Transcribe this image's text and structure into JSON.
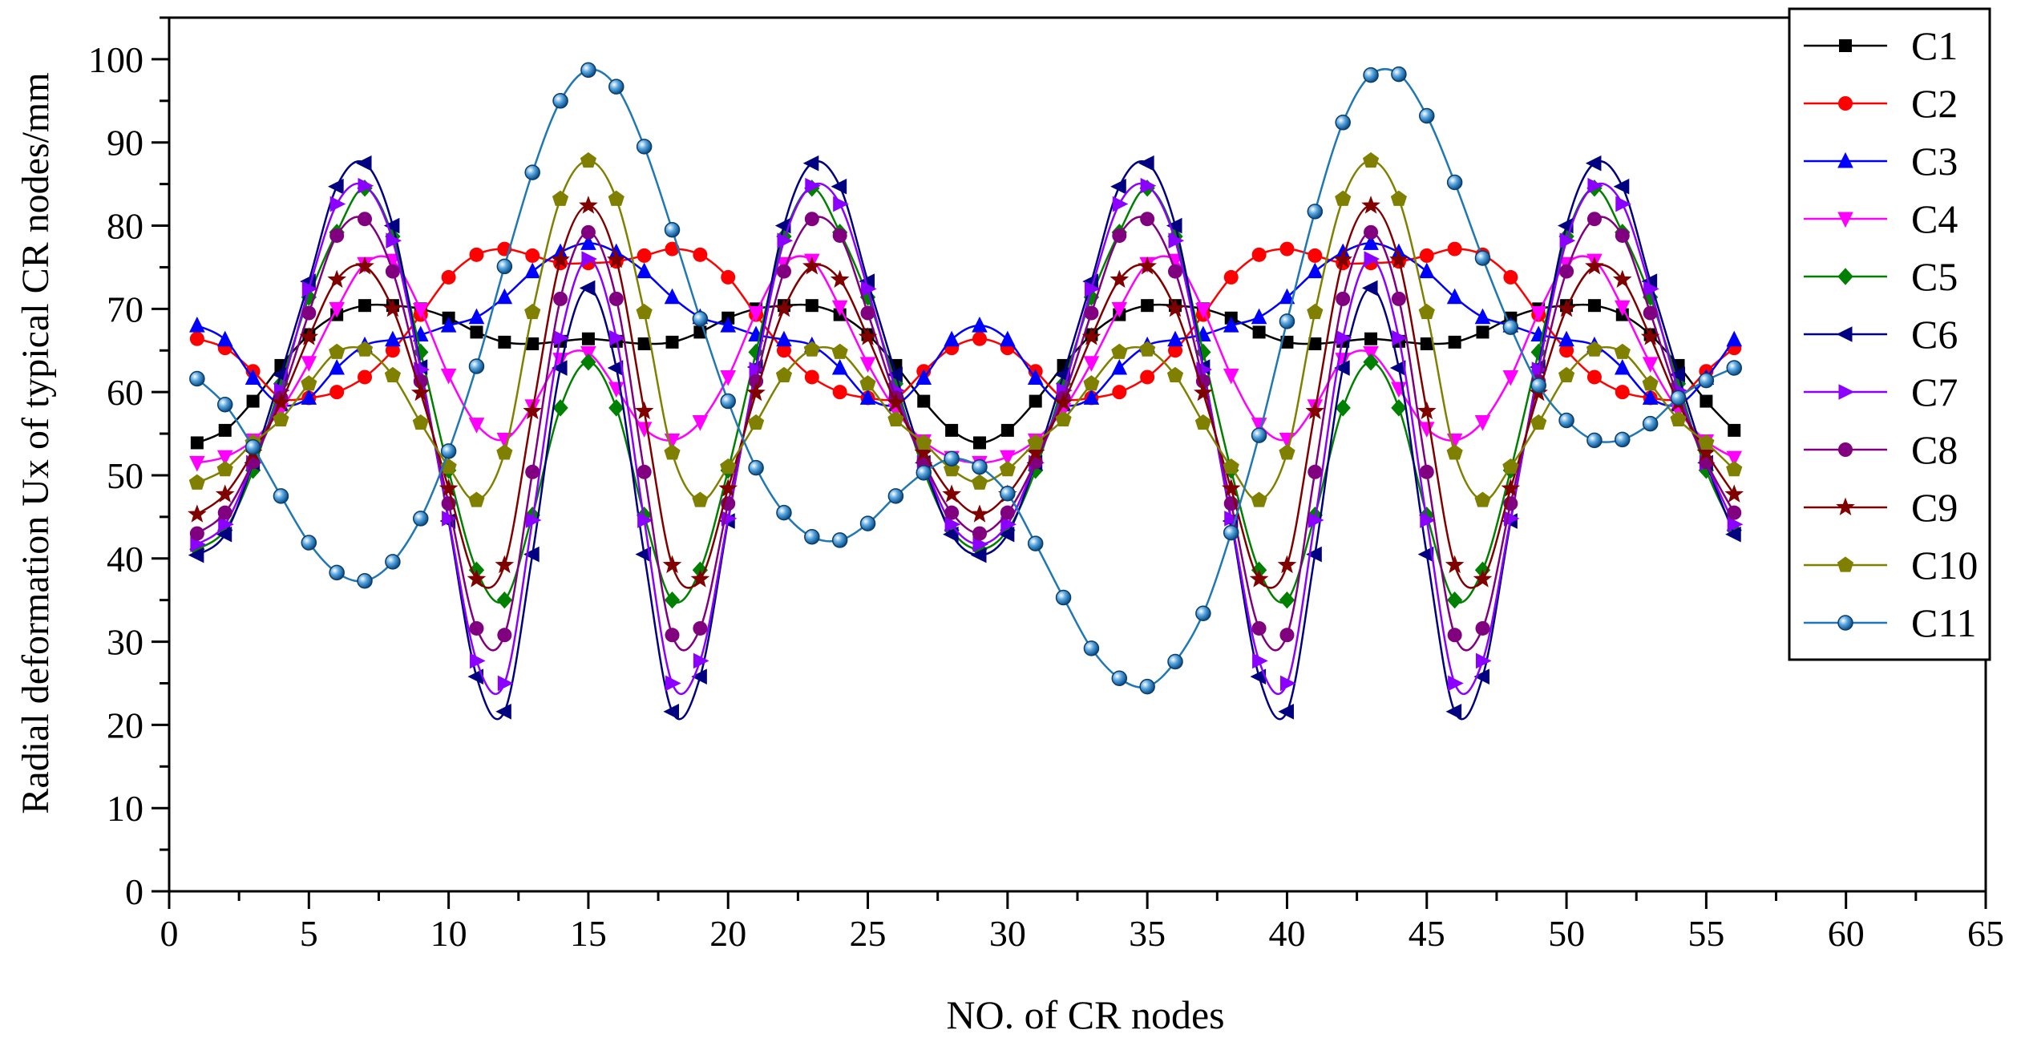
{
  "chart_data": {
    "type": "line",
    "title": "",
    "xlabel": "NO. of CR nodes",
    "ylabel": "Radial deformation Ux of typical CR nodes/mm",
    "xlim": [
      0,
      65
    ],
    "ylim": [
      0,
      105
    ],
    "xticks": [
      0,
      5,
      10,
      15,
      20,
      25,
      30,
      35,
      40,
      45,
      50,
      55,
      60,
      65
    ],
    "yticks": [
      0,
      10,
      20,
      30,
      40,
      50,
      60,
      70,
      80,
      90,
      100
    ],
    "grid": false,
    "legend_position": "top-right",
    "x": [
      1,
      2,
      3,
      4,
      5,
      6,
      7,
      8,
      9,
      10,
      11,
      12,
      13,
      14,
      15,
      16,
      17,
      18,
      19,
      20,
      21,
      22,
      23,
      24,
      25,
      26,
      27,
      28,
      29,
      30,
      31,
      32,
      33,
      34,
      35,
      36,
      37,
      38,
      39,
      40,
      41,
      42,
      43,
      44,
      45,
      46,
      47,
      48,
      49,
      50,
      51,
      52,
      53,
      54,
      55,
      56
    ],
    "series": [
      {
        "name": "C1",
        "color": "#000000",
        "marker": "square",
        "values": [
          53.9,
          55.4,
          58.9,
          63.2,
          66.9,
          69.3,
          70.4,
          70.4,
          70.0,
          68.9,
          67.2,
          66.0,
          65.8,
          66.1,
          66.4,
          66.1,
          65.8,
          66.0,
          67.2,
          68.9,
          70.0,
          70.4,
          70.4,
          69.3,
          66.9,
          63.2,
          58.9,
          55.4,
          53.9,
          55.4,
          58.9,
          63.2,
          66.9,
          69.3,
          70.4,
          70.4,
          70.0,
          68.9,
          67.2,
          66.0,
          65.8,
          66.1,
          66.4,
          66.1,
          65.8,
          66.0,
          67.2,
          68.9,
          70.0,
          70.4,
          70.4,
          69.3,
          66.9,
          63.2,
          58.9,
          55.4
        ]
      },
      {
        "name": "C2",
        "color": "#ff0000",
        "marker": "circle",
        "values": [
          66.4,
          65.3,
          62.5,
          59.3,
          59.3,
          60.0,
          61.8,
          65.0,
          69.3,
          73.8,
          76.5,
          77.2,
          76.4,
          75.5,
          75.5,
          75.7,
          76.4,
          77.2,
          76.5,
          73.8,
          69.3,
          65.0,
          61.8,
          60.0,
          59.3,
          59.3,
          62.5,
          65.3,
          66.4,
          65.3,
          62.5,
          59.3,
          59.3,
          60.0,
          61.8,
          65.0,
          69.3,
          73.8,
          76.5,
          77.2,
          76.4,
          75.5,
          75.5,
          75.7,
          76.4,
          77.2,
          76.5,
          73.8,
          69.3,
          65.0,
          61.8,
          60.0,
          59.3,
          59.3,
          62.5,
          65.3
        ]
      },
      {
        "name": "C3",
        "color": "#0000ff",
        "marker": "triangle-up",
        "values": [
          68.0,
          66.3,
          61.7,
          58.5,
          59.3,
          62.9,
          65.6,
          66.3,
          66.9,
          68.0,
          69.0,
          71.4,
          74.5,
          76.8,
          77.9,
          76.8,
          74.5,
          71.4,
          69.0,
          68.0,
          66.9,
          66.3,
          65.6,
          62.9,
          59.3,
          58.5,
          61.7,
          66.3,
          68.0,
          66.3,
          61.7,
          58.5,
          59.3,
          62.9,
          65.6,
          66.3,
          66.9,
          68.0,
          69.0,
          71.4,
          74.5,
          76.8,
          77.9,
          76.8,
          74.5,
          71.4,
          69.0,
          68.0,
          66.9,
          66.3,
          65.6,
          62.9,
          59.3,
          58.5,
          61.7,
          66.3
        ]
      },
      {
        "name": "C4",
        "color": "#ff00ff",
        "marker": "triangle-down",
        "values": [
          51.5,
          52.2,
          54.2,
          57.9,
          63.5,
          70.0,
          75.4,
          75.8,
          69.9,
          62.0,
          56.1,
          54.3,
          58.3,
          63.9,
          64.7,
          60.4,
          55.6,
          54.2,
          56.4,
          61.8,
          69.5,
          75.4,
          75.8,
          70.2,
          63.4,
          57.8,
          54.1,
          52.1,
          51.5,
          52.2,
          54.2,
          57.9,
          63.5,
          70.0,
          75.4,
          75.8,
          69.9,
          62.0,
          56.1,
          54.3,
          58.3,
          63.9,
          64.7,
          60.4,
          55.6,
          54.2,
          56.4,
          61.8,
          69.5,
          75.4,
          75.8,
          70.2,
          63.4,
          57.8,
          54.1,
          52.1
        ]
      },
      {
        "name": "C5",
        "color": "#008000",
        "marker": "diamond",
        "values": [
          41.1,
          43.4,
          50.6,
          61.0,
          71.4,
          79.2,
          84.5,
          78.7,
          64.8,
          50.6,
          38.6,
          35.0,
          45.2,
          58.1,
          63.6,
          58.1,
          45.2,
          35.0,
          38.6,
          50.6,
          64.8,
          78.7,
          84.5,
          79.2,
          71.4,
          61.0,
          50.6,
          43.4,
          41.1,
          43.4,
          50.6,
          61.0,
          71.4,
          79.2,
          84.5,
          78.7,
          64.8,
          50.6,
          38.6,
          35.0,
          45.2,
          58.1,
          63.6,
          58.1,
          45.2,
          35.0,
          38.6,
          50.6,
          64.8,
          78.7,
          84.5,
          79.2,
          71.4,
          61.0,
          50.6,
          43.4
        ]
      },
      {
        "name": "C6",
        "color": "#000080",
        "marker": "triangle-left",
        "values": [
          40.4,
          42.9,
          51.5,
          62.1,
          73.3,
          84.7,
          87.5,
          80.0,
          63.0,
          44.5,
          25.8,
          21.6,
          40.5,
          62.9,
          72.5,
          62.9,
          40.5,
          21.6,
          25.8,
          44.5,
          63.0,
          80.0,
          87.5,
          84.7,
          73.3,
          62.1,
          51.5,
          42.9,
          40.4,
          42.9,
          51.5,
          62.1,
          73.3,
          84.7,
          87.5,
          80.0,
          63.0,
          44.5,
          25.8,
          21.6,
          40.5,
          62.9,
          72.5,
          62.9,
          40.5,
          21.6,
          25.8,
          44.5,
          63.0,
          80.0,
          87.5,
          84.7,
          73.3,
          62.1,
          51.5,
          42.9
        ]
      },
      {
        "name": "C7",
        "color": "#8b00ff",
        "marker": "triangle-right",
        "values": [
          41.7,
          44.1,
          51.5,
          60.2,
          72.4,
          82.6,
          84.8,
          78.2,
          62.7,
          44.8,
          27.7,
          25.0,
          44.6,
          66.5,
          76.0,
          66.5,
          44.6,
          25.0,
          27.7,
          44.8,
          62.7,
          78.2,
          84.8,
          82.6,
          72.4,
          60.2,
          51.5,
          44.1,
          41.7,
          44.1,
          51.5,
          60.2,
          72.4,
          82.6,
          84.8,
          78.2,
          62.7,
          44.8,
          27.7,
          25.0,
          44.6,
          66.5,
          76.0,
          66.5,
          44.6,
          25.0,
          27.7,
          44.8,
          62.7,
          78.2,
          84.8,
          82.6,
          72.4,
          60.2,
          51.5,
          44.1
        ]
      },
      {
        "name": "C8",
        "color": "#800080",
        "marker": "circle",
        "values": [
          43.0,
          45.5,
          51.6,
          59.3,
          69.5,
          78.8,
          80.8,
          74.5,
          61.3,
          46.6,
          31.6,
          30.8,
          50.4,
          71.2,
          79.2,
          71.2,
          50.4,
          30.8,
          31.6,
          46.6,
          61.3,
          74.5,
          80.8,
          78.8,
          69.5,
          59.3,
          51.6,
          45.5,
          43.0,
          45.5,
          51.6,
          59.3,
          69.5,
          78.8,
          80.8,
          74.5,
          61.3,
          46.6,
          31.6,
          30.8,
          50.4,
          71.2,
          79.2,
          71.2,
          50.4,
          30.8,
          31.6,
          46.6,
          61.3,
          74.5,
          80.8,
          78.8,
          69.5,
          59.3,
          51.6,
          45.5
        ]
      },
      {
        "name": "C9",
        "color": "#800000",
        "marker": "star",
        "values": [
          45.3,
          47.7,
          52.7,
          58.7,
          66.6,
          73.5,
          75.1,
          70.0,
          59.9,
          48.4,
          37.5,
          39.2,
          57.7,
          75.9,
          82.4,
          75.9,
          57.7,
          39.2,
          37.5,
          48.4,
          59.9,
          70.0,
          75.1,
          73.5,
          66.6,
          58.7,
          52.7,
          47.7,
          45.3,
          47.7,
          52.7,
          58.7,
          66.6,
          73.5,
          75.1,
          70.0,
          59.9,
          48.4,
          37.5,
          39.2,
          57.7,
          75.9,
          82.4,
          75.9,
          57.7,
          39.2,
          37.5,
          48.4,
          59.9,
          70.0,
          75.1,
          73.5,
          66.6,
          58.7,
          52.7,
          47.7
        ]
      },
      {
        "name": "C10",
        "color": "#808000",
        "marker": "pentagon",
        "values": [
          49.1,
          50.7,
          53.9,
          56.7,
          61.0,
          64.8,
          65.1,
          62.0,
          56.3,
          51.0,
          47.0,
          52.7,
          69.6,
          83.2,
          87.8,
          83.2,
          69.6,
          52.7,
          47.0,
          51.0,
          56.3,
          62.0,
          65.1,
          64.8,
          61.0,
          56.7,
          53.9,
          50.7,
          49.1,
          50.7,
          53.9,
          56.7,
          61.0,
          64.8,
          65.1,
          62.0,
          56.3,
          51.0,
          47.0,
          52.7,
          69.6,
          83.2,
          87.8,
          83.2,
          69.6,
          52.7,
          47.0,
          51.0,
          56.3,
          62.0,
          65.1,
          64.8,
          61.0,
          56.7,
          53.9,
          50.7
        ]
      },
      {
        "name": "C11",
        "color": "#1f77b4",
        "marker": "sphere",
        "values": [
          61.6,
          58.5,
          53.4,
          47.5,
          41.9,
          38.3,
          37.3,
          39.6,
          44.8,
          52.9,
          63.1,
          75.1,
          86.4,
          95.0,
          98.7,
          96.7,
          89.5,
          79.5,
          68.8,
          58.9,
          50.9,
          45.5,
          42.6,
          42.2,
          44.2,
          47.5,
          50.3,
          52.0,
          51.0,
          47.8,
          41.8,
          35.3,
          29.2,
          25.6,
          24.6,
          27.6,
          33.4,
          43.1,
          54.8,
          68.5,
          81.7,
          92.4,
          98.1,
          98.2,
          93.2,
          85.2,
          76.1,
          67.8,
          60.8,
          56.6,
          54.2,
          54.3,
          56.2,
          59.3,
          61.4,
          62.9
        ]
      }
    ]
  }
}
